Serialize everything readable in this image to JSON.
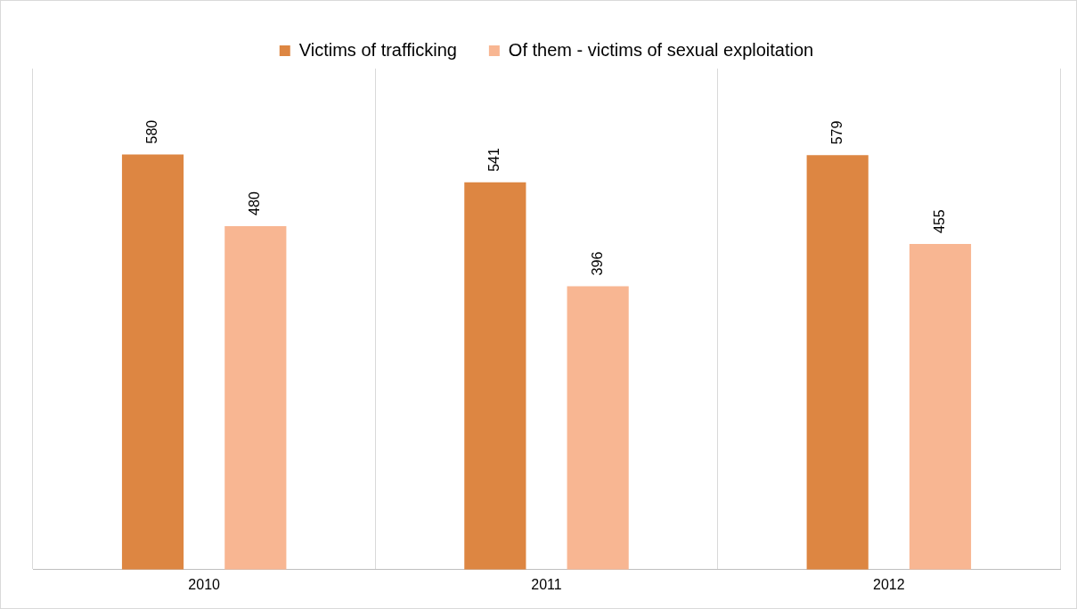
{
  "chart_data": {
    "type": "bar",
    "categories": [
      "2010",
      "2011",
      "2012"
    ],
    "series": [
      {
        "name": "Victims of trafficking",
        "color": "#dd8642",
        "values": [
          580,
          541,
          579
        ]
      },
      {
        "name": "Of them - victims of sexual exploitation",
        "color": "#f8b692",
        "values": [
          480,
          396,
          455
        ]
      }
    ],
    "data_labels": true,
    "grid": "x",
    "legend": "top"
  }
}
